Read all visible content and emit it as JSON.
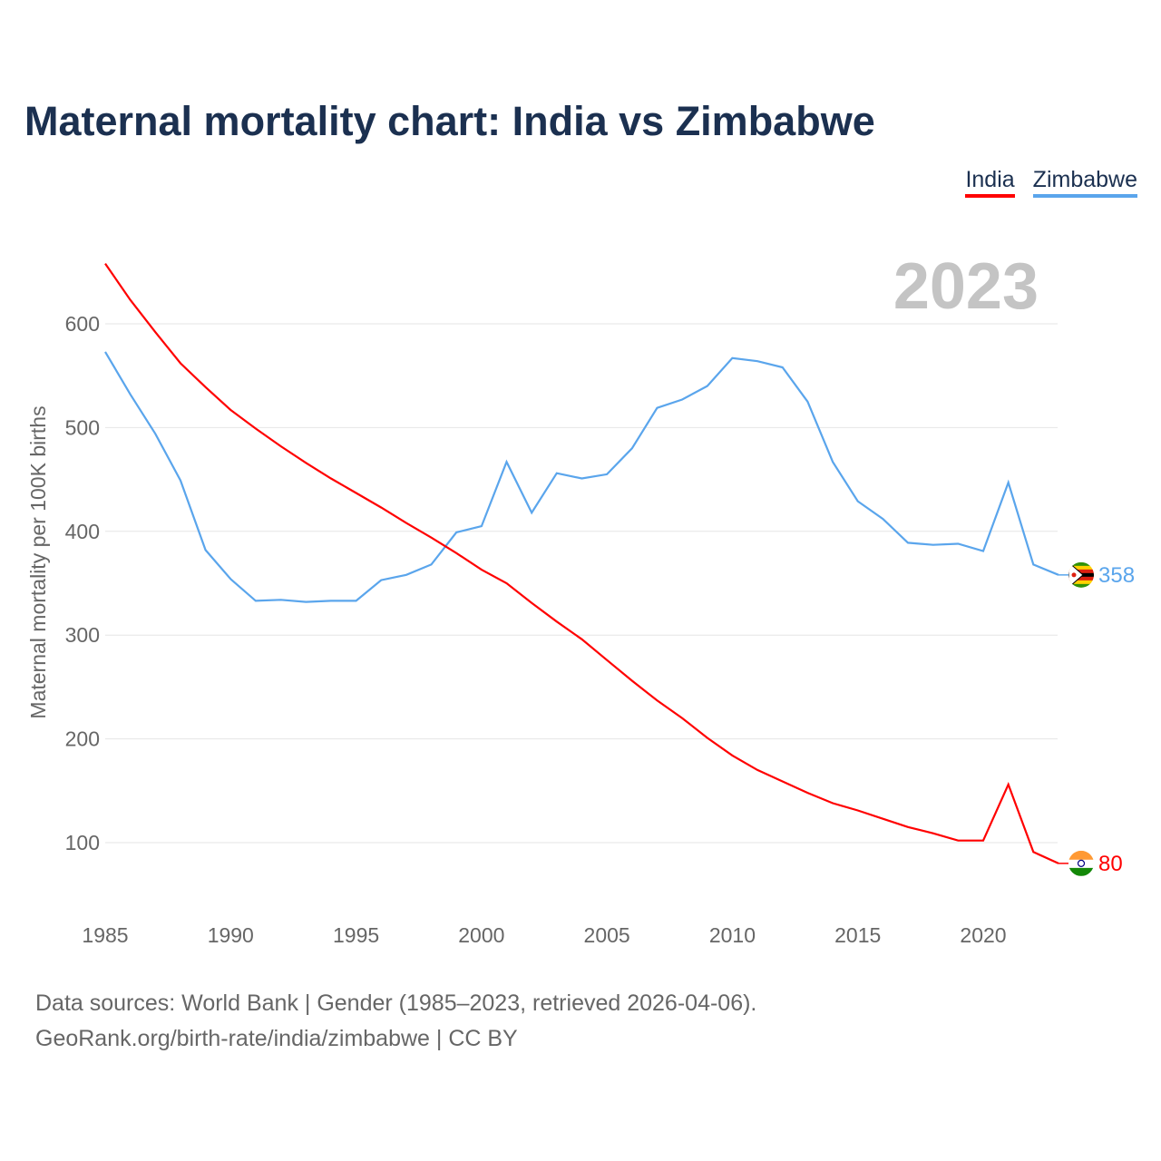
{
  "chart_data": {
    "type": "line",
    "title": "Maternal mortality chart: India vs Zimbabwe",
    "ylabel": "Maternal mortality per 100K births",
    "xlabel": "",
    "year_label": "2023",
    "xlim": [
      1985,
      2023
    ],
    "ylim": [
      40,
      670
    ],
    "yticks": [
      100,
      200,
      300,
      400,
      500,
      600
    ],
    "xticks": [
      1985,
      1990,
      1995,
      2000,
      2005,
      2010,
      2015,
      2020
    ],
    "grid": true,
    "legend_position": "top-right",
    "x": [
      1985,
      1986,
      1987,
      1988,
      1989,
      1990,
      1991,
      1992,
      1993,
      1994,
      1995,
      1996,
      1997,
      1998,
      1999,
      2000,
      2001,
      2002,
      2003,
      2004,
      2005,
      2006,
      2007,
      2008,
      2009,
      2010,
      2011,
      2012,
      2013,
      2014,
      2015,
      2016,
      2017,
      2018,
      2019,
      2020,
      2021,
      2022,
      2023
    ],
    "series": [
      {
        "name": "India",
        "color": "#ff0000",
        "end_label": "80",
        "values": [
          658,
          623,
          592,
          562,
          539,
          517,
          499,
          482,
          466,
          451,
          437,
          423,
          408,
          394,
          379,
          363,
          350,
          331,
          313,
          296,
          276,
          256,
          237,
          220,
          201,
          184,
          170,
          159,
          148,
          138,
          131,
          123,
          115,
          109,
          102,
          102,
          156,
          91,
          80
        ]
      },
      {
        "name": "Zimbabwe",
        "color": "#5aa5ec",
        "end_label": "358",
        "values": [
          573,
          532,
          494,
          449,
          382,
          354,
          333,
          334,
          332,
          333,
          333,
          353,
          358,
          368,
          399,
          405,
          467,
          418,
          456,
          451,
          455,
          480,
          519,
          527,
          540,
          567,
          564,
          558,
          525,
          467,
          429,
          412,
          389,
          387,
          388,
          381,
          447,
          368,
          358
        ]
      }
    ]
  },
  "footer": {
    "line1": "Data sources: World Bank | Gender (1985–2023, retrieved 2026-04-06).",
    "line2": "GeoRank.org/birth-rate/india/zimbabwe | CC BY"
  }
}
